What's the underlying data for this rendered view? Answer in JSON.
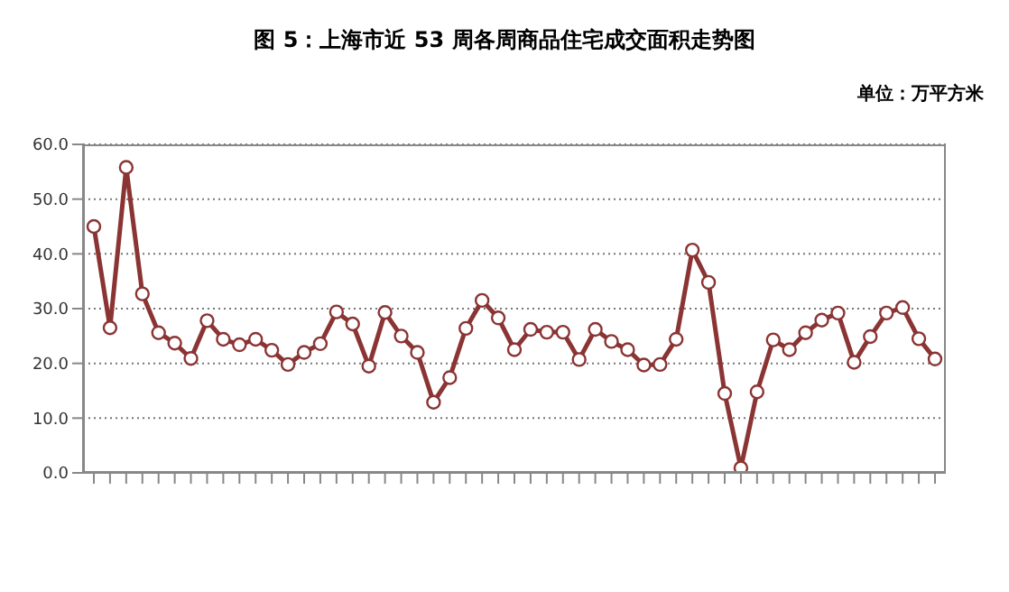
{
  "chart_data": {
    "type": "line",
    "title": "图 5：上海市近 53 周各周商品住宅成交面积走势图",
    "ylabel": "单位：万平方米",
    "categories": [
      null,
      null,
      null,
      null,
      null,
      null,
      null,
      null,
      null,
      null,
      null,
      null,
      null,
      null,
      null,
      null,
      null,
      null,
      null,
      null,
      null,
      null,
      null,
      null,
      null,
      null,
      null,
      null,
      null,
      null,
      null,
      null,
      null,
      null,
      null,
      null,
      null,
      null,
      null,
      null,
      null,
      null,
      null,
      null,
      null,
      null,
      null,
      null,
      null,
      null,
      null,
      null,
      null
    ],
    "series": [
      {
        "color": "#8b3434",
        "values": [
          45.0,
          26.5,
          55.8,
          32.7,
          25.6,
          23.7,
          20.9,
          27.8,
          24.4,
          23.4,
          24.4,
          22.4,
          19.8,
          22.0,
          23.6,
          29.4,
          27.2,
          19.5,
          29.3,
          25.0,
          22.0,
          12.9,
          17.4,
          26.4,
          31.5,
          28.3,
          22.5,
          26.2,
          25.7,
          25.7,
          20.7,
          26.2,
          24.0,
          22.5,
          19.7,
          19.8,
          24.4,
          40.7,
          34.8,
          14.5,
          0.9,
          14.8,
          24.3,
          22.5,
          25.6,
          27.9,
          29.2,
          20.2,
          24.9,
          29.2,
          30.2,
          24.5,
          20.8
        ]
      }
    ],
    "ylim": [
      0,
      60
    ],
    "yticks": [
      {
        "value": 0,
        "label": "0.0"
      },
      {
        "value": 10,
        "label": "10.0"
      },
      {
        "value": 20,
        "label": "20.0"
      },
      {
        "value": 30,
        "label": "30.0"
      },
      {
        "value": 40,
        "label": "40.0"
      },
      {
        "value": 50,
        "label": "50.0"
      },
      {
        "value": 60,
        "label": "60.0"
      }
    ],
    "grid": "y",
    "legend": false,
    "marker": "circle",
    "line_style": "solid"
  }
}
